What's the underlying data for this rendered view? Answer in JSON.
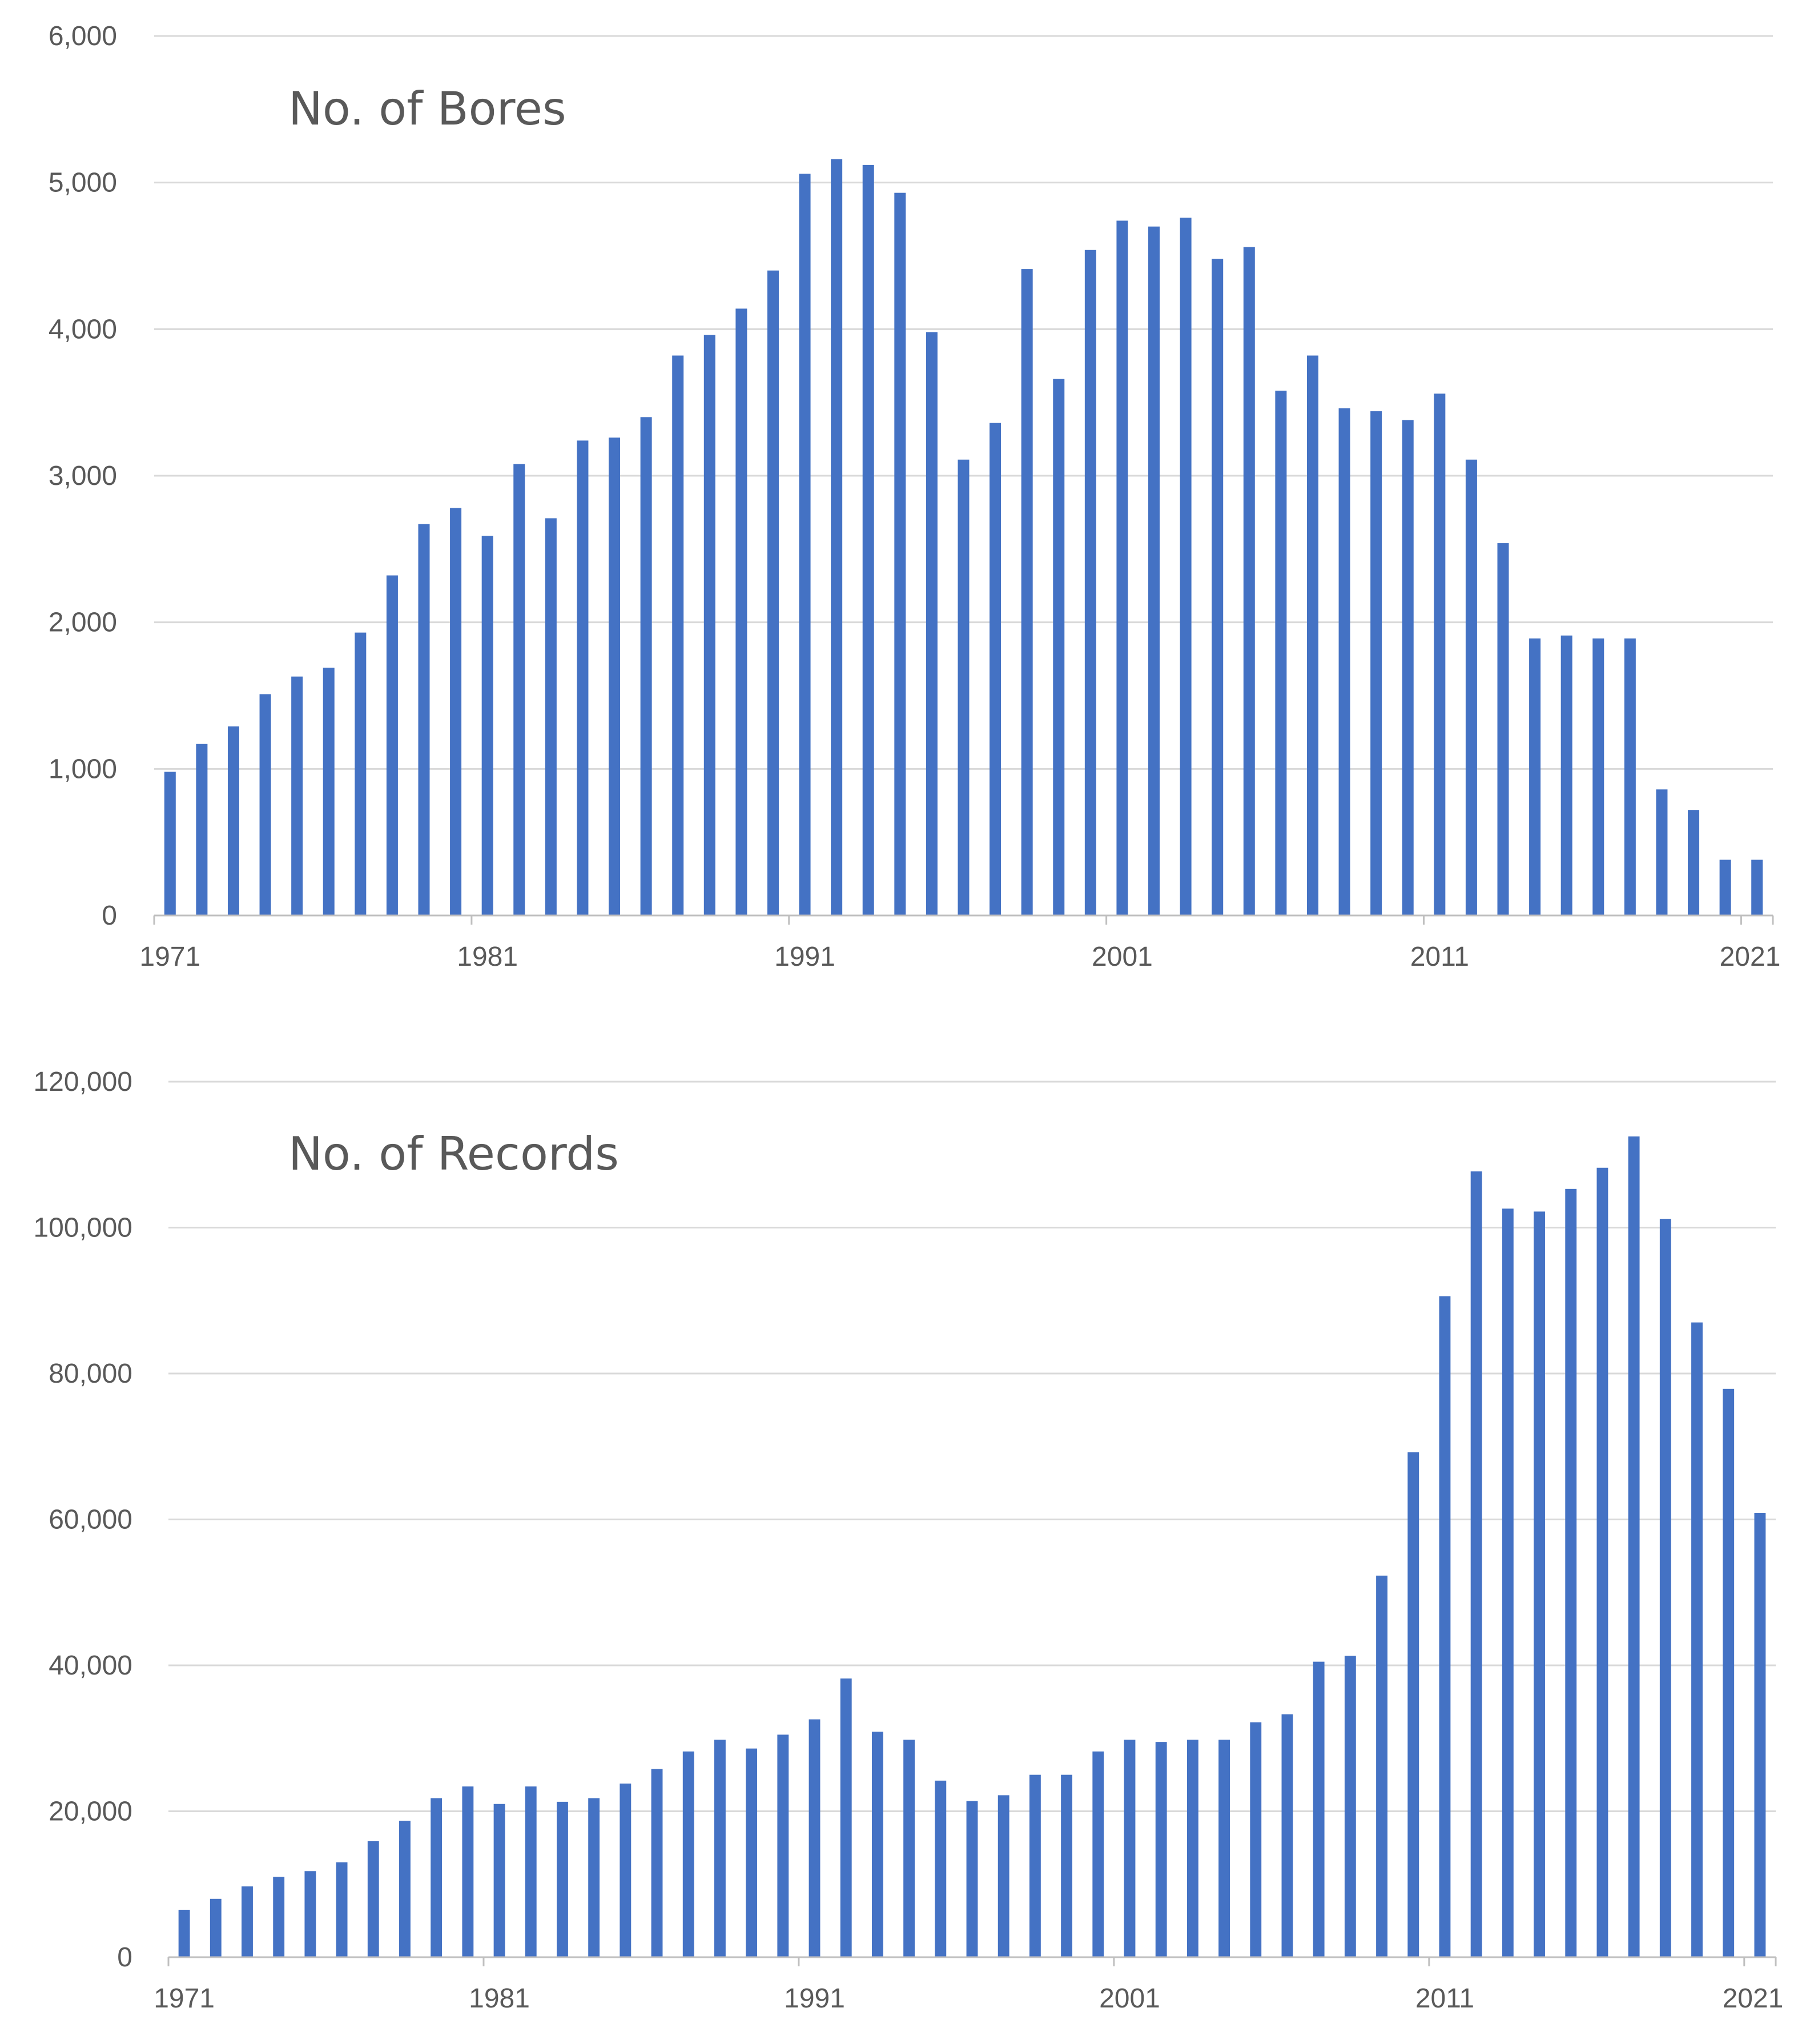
{
  "chart_data": [
    {
      "type": "bar",
      "title": "No. of Bores",
      "xlabel": "",
      "ylabel": "",
      "ylim": [
        0,
        6000
      ],
      "yticks": [
        "0",
        "1,000",
        "2,000",
        "3,000",
        "4,000",
        "5,000",
        "6,000"
      ],
      "xtick_labels": [
        "1971",
        "1981",
        "1991",
        "2001",
        "2011",
        "2021"
      ],
      "grid": true,
      "categories": [
        1971,
        1972,
        1973,
        1974,
        1975,
        1976,
        1977,
        1978,
        1979,
        1980,
        1981,
        1982,
        1983,
        1984,
        1985,
        1986,
        1987,
        1988,
        1989,
        1990,
        1991,
        1992,
        1993,
        1994,
        1995,
        1996,
        1997,
        1998,
        1999,
        2000,
        2001,
        2002,
        2003,
        2004,
        2005,
        2006,
        2007,
        2008,
        2009,
        2010,
        2011,
        2012,
        2013,
        2014,
        2015,
        2016,
        2017,
        2018,
        2019,
        2020,
        2021
      ],
      "values": [
        980,
        1170,
        1290,
        1510,
        1630,
        1690,
        1930,
        2320,
        2670,
        2780,
        2590,
        3080,
        2710,
        3240,
        3260,
        3400,
        3820,
        3960,
        4140,
        4400,
        5060,
        5160,
        5120,
        4930,
        3980,
        3110,
        3360,
        4410,
        3660,
        4540,
        4740,
        4700,
        4760,
        4480,
        4560,
        3580,
        3820,
        3460,
        3440,
        3380,
        3560,
        3110,
        2540,
        1890,
        1910,
        1890,
        1890,
        860,
        720,
        380,
        380
      ],
      "color": "#4472c4"
    },
    {
      "type": "bar",
      "title": "No. of Records",
      "xlabel": "",
      "ylabel": "",
      "ylim": [
        0,
        120000
      ],
      "yticks": [
        "0",
        "20,000",
        "40,000",
        "60,000",
        "80,000",
        "100,000",
        "120,000"
      ],
      "xtick_labels": [
        "1971",
        "1981",
        "1991",
        "2001",
        "2011",
        "2021"
      ],
      "grid": true,
      "categories": [
        1971,
        1972,
        1973,
        1974,
        1975,
        1976,
        1977,
        1978,
        1979,
        1980,
        1981,
        1982,
        1983,
        1984,
        1985,
        1986,
        1987,
        1988,
        1989,
        1990,
        1991,
        1992,
        1993,
        1994,
        1995,
        1996,
        1997,
        1998,
        1999,
        2000,
        2001,
        2002,
        2003,
        2004,
        2005,
        2006,
        2007,
        2008,
        2009,
        2010,
        2011,
        2012,
        2013,
        2014,
        2015,
        2016,
        2017,
        2018,
        2019,
        2020,
        2021
      ],
      "values": [
        6500,
        8000,
        9700,
        11000,
        11800,
        13000,
        15900,
        18700,
        21800,
        23400,
        21000,
        23400,
        21300,
        21800,
        23800,
        25800,
        28200,
        29800,
        28600,
        30500,
        32600,
        38200,
        30900,
        29800,
        24200,
        21400,
        22200,
        25000,
        25000,
        28200,
        29800,
        29500,
        29800,
        29800,
        32200,
        33300,
        40500,
        41300,
        52300,
        69200,
        90600,
        107700,
        102600,
        102200,
        105300,
        108200,
        112500,
        101200,
        87000,
        77900,
        60900
      ],
      "color": "#4472c4"
    }
  ]
}
